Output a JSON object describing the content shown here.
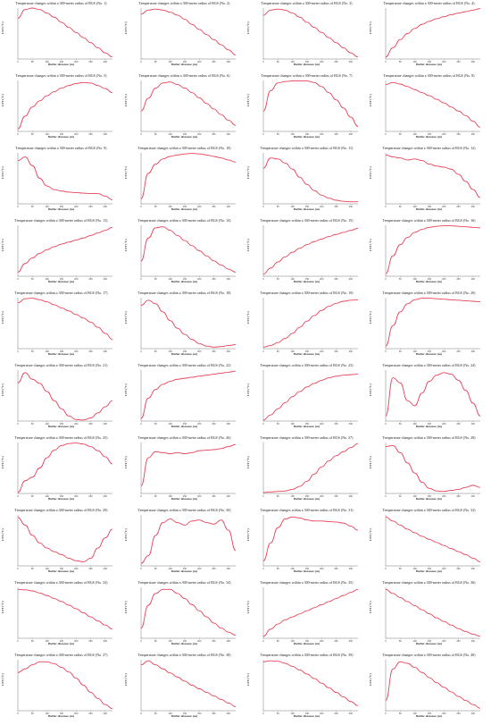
{
  "chart_data": {
    "type": "line",
    "panels": [
      {
        "title": "Temperature changes within a 300-meter radius of BGS (No. 1)",
        "xlabel": "Buffer distance (m)",
        "ylabel": "LST (°C)",
        "y": [
          0.8,
          0.97,
          1.0,
          0.97,
          0.9,
          0.82,
          0.72,
          0.62,
          0.52,
          0.42,
          0.32,
          0.22,
          0.12,
          0.04
        ]
      },
      {
        "title": "Temperature changes within a 300-meter radius of BGS (No. 2)",
        "xlabel": "Buffer distance (m)",
        "ylabel": "LST (°C)",
        "y": [
          0.88,
          0.96,
          0.98,
          0.96,
          0.92,
          0.86,
          0.78,
          0.68,
          0.58,
          0.48,
          0.38,
          0.28,
          0.18,
          0.08
        ]
      },
      {
        "title": "Temperature changes within a 300-meter radius of BGS (No. 3)",
        "xlabel": "Buffer distance (m)",
        "ylabel": "LST (°C)",
        "y": [
          0.86,
          0.96,
          0.98,
          0.96,
          0.9,
          0.82,
          0.72,
          0.62,
          0.52,
          0.42,
          0.32,
          0.22,
          0.12,
          0.04
        ]
      },
      {
        "title": "Temperature changes within a 300-meter radius of BGS (No. 4)",
        "xlabel": "Buffer distance (m)",
        "ylabel": "LST (°C)",
        "y": [
          0.04,
          0.22,
          0.38,
          0.5,
          0.6,
          0.68,
          0.74,
          0.79,
          0.83,
          0.87,
          0.9,
          0.93,
          0.96,
          0.99
        ]
      },
      {
        "title": "Temperature changes within a 300-meter radius of BGS (No. 5)",
        "xlabel": "Buffer distance (m)",
        "ylabel": "LST (°C)",
        "y": [
          0.05,
          0.3,
          0.48,
          0.6,
          0.7,
          0.78,
          0.85,
          0.9,
          0.94,
          0.96,
          0.95,
          0.9,
          0.84,
          0.76
        ]
      },
      {
        "title": "Temperature changes within a 300-meter radius of BGS (No. 6)",
        "xlabel": "Buffer distance (m)",
        "ylabel": "LST (°C)",
        "y": [
          0.4,
          0.65,
          0.85,
          0.95,
          0.97,
          0.92,
          0.85,
          0.76,
          0.66,
          0.55,
          0.44,
          0.33,
          0.22,
          0.12
        ]
      },
      {
        "title": "Temperature changes within a 300-meter radius of BGS (No. 7)",
        "xlabel": "Buffer distance (m)",
        "ylabel": "LST (°C)",
        "y": [
          0.4,
          0.8,
          0.95,
          0.98,
          0.99,
          0.99,
          0.99,
          0.96,
          0.88,
          0.76,
          0.62,
          0.46,
          0.28,
          0.1
        ]
      },
      {
        "title": "Temperature changes within a 300-meter radius of BGS (No. 8)",
        "xlabel": "Buffer distance (m)",
        "ylabel": "LST (°C)",
        "y": [
          0.92,
          0.96,
          0.93,
          0.88,
          0.82,
          0.76,
          0.7,
          0.63,
          0.56,
          0.48,
          0.4,
          0.31,
          0.2,
          0.08
        ]
      },
      {
        "title": "Temperature changes within a 300-meter radius of BGS (No. 9)",
        "xlabel": "Buffer distance (m)",
        "ylabel": "LST (°C)",
        "y": [
          0.85,
          0.92,
          0.75,
          0.5,
          0.35,
          0.28,
          0.25,
          0.23,
          0.22,
          0.21,
          0.2,
          0.2,
          0.15,
          0.08
        ]
      },
      {
        "title": "Temperature changes within a 300-meter radius of BGS (No. 10)",
        "xlabel": "Buffer distance (m)",
        "ylabel": "LST (°C)",
        "y": [
          0.1,
          0.6,
          0.78,
          0.88,
          0.93,
          0.96,
          0.98,
          0.99,
          0.98,
          0.96,
          0.93,
          0.9,
          0.86,
          0.82
        ]
      },
      {
        "title": "Temperature changes within a 300-meter radius of BGS (No. 11)",
        "xlabel": "Buffer distance (m)",
        "ylabel": "LST (°C)",
        "y": [
          0.7,
          0.9,
          0.88,
          0.8,
          0.68,
          0.52,
          0.38,
          0.26,
          0.17,
          0.11,
          0.07,
          0.05,
          0.04,
          0.04
        ]
      },
      {
        "title": "Temperature changes within a 300-meter radius of BGS (No. 12)",
        "xlabel": "Buffer distance (m)",
        "ylabel": "LST (°C)",
        "y": [
          0.96,
          0.92,
          0.9,
          0.86,
          0.88,
          0.85,
          0.78,
          0.74,
          0.72,
          0.68,
          0.58,
          0.44,
          0.28,
          0.12
        ]
      },
      {
        "title": "Temperature changes within a 300-meter radius of BGS (No. 13)",
        "xlabel": "Buffer distance (m)",
        "ylabel": "LST (°C)",
        "y": [
          0.08,
          0.25,
          0.36,
          0.45,
          0.52,
          0.58,
          0.63,
          0.67,
          0.71,
          0.75,
          0.8,
          0.85,
          0.9,
          0.96
        ]
      },
      {
        "title": "Temperature changes within a 300-meter radius of BGS (No. 14)",
        "xlabel": "Buffer distance (m)",
        "ylabel": "LST (°C)",
        "y": [
          0.3,
          0.75,
          0.95,
          0.97,
          0.9,
          0.8,
          0.7,
          0.6,
          0.5,
          0.4,
          0.3,
          0.22,
          0.14,
          0.08
        ]
      },
      {
        "title": "Temperature changes within a 300-meter radius of BGS (No. 15)",
        "xlabel": "Buffer distance (m)",
        "ylabel": "LST (°C)",
        "y": [
          0.04,
          0.16,
          0.28,
          0.38,
          0.47,
          0.55,
          0.62,
          0.68,
          0.73,
          0.78,
          0.82,
          0.86,
          0.9,
          0.94
        ]
      },
      {
        "title": "Temperature changes within a 300-meter radius of BGS (No. 16)",
        "xlabel": "Buffer distance (m)",
        "ylabel": "LST (°C)",
        "y": [
          0.05,
          0.4,
          0.62,
          0.76,
          0.86,
          0.92,
          0.96,
          0.98,
          0.99,
          0.99,
          0.98,
          0.97,
          0.96,
          0.95
        ]
      },
      {
        "title": "Temperature changes within a 300-meter radius of BGS (No. 17)",
        "xlabel": "Buffer distance (m)",
        "ylabel": "LST (°C)",
        "y": [
          0.9,
          0.98,
          0.99,
          0.96,
          0.92,
          0.86,
          0.8,
          0.74,
          0.67,
          0.6,
          0.52,
          0.42,
          0.3,
          0.18
        ]
      },
      {
        "title": "Temperature changes within a 300-meter radius of BGS (No. 18)",
        "xlabel": "Buffer distance (m)",
        "ylabel": "LST (°C)",
        "y": [
          0.85,
          0.95,
          0.88,
          0.72,
          0.55,
          0.4,
          0.28,
          0.18,
          0.1,
          0.05,
          0.03,
          0.04,
          0.06,
          0.08
        ]
      },
      {
        "title": "Temperature changes within a 300-meter radius of BGS (No. 19)",
        "xlabel": "Buffer distance (m)",
        "ylabel": "LST (°C)",
        "y": [
          0.03,
          0.06,
          0.12,
          0.2,
          0.3,
          0.42,
          0.54,
          0.65,
          0.75,
          0.83,
          0.89,
          0.93,
          0.95,
          0.96
        ]
      },
      {
        "title": "Temperature changes within a 300-meter radius of BGS (No. 20)",
        "xlabel": "Buffer distance (m)",
        "ylabel": "LST (°C)",
        "y": [
          0.05,
          0.45,
          0.72,
          0.88,
          0.96,
          0.99,
          0.99,
          0.98,
          0.97,
          0.96,
          0.95,
          0.94,
          0.93,
          0.92
        ]
      },
      {
        "title": "Temperature changes within a 300-meter radius of BGS (No. 21)",
        "xlabel": "Buffer distance (m)",
        "ylabel": "LST (°C)",
        "y": [
          0.75,
          0.95,
          0.82,
          0.74,
          0.58,
          0.4,
          0.24,
          0.1,
          0.03,
          0.02,
          0.06,
          0.16,
          0.28,
          0.4
        ]
      },
      {
        "title": "Temperature changes within a 300-meter radius of BGS (No. 22)",
        "xlabel": "Buffer distance (m)",
        "ylabel": "LST (°C)",
        "y": [
          0.05,
          0.45,
          0.62,
          0.72,
          0.78,
          0.82,
          0.84,
          0.86,
          0.88,
          0.9,
          0.92,
          0.94,
          0.96,
          0.98
        ]
      },
      {
        "title": "Temperature changes within a 300-meter radius of BGS (No. 23)",
        "xlabel": "Buffer distance (m)",
        "ylabel": "LST (°C)",
        "y": [
          0.02,
          0.12,
          0.24,
          0.36,
          0.48,
          0.58,
          0.67,
          0.74,
          0.8,
          0.85,
          0.88,
          0.9,
          0.91,
          0.92
        ]
      },
      {
        "title": "Temperature changes within a 300-meter radius of BGS (No. 24)",
        "xlabel": "Buffer distance (m)",
        "ylabel": "LST (°C)",
        "y": [
          0.1,
          0.85,
          0.75,
          0.4,
          0.3,
          0.55,
          0.78,
          0.9,
          0.95,
          0.92,
          0.8,
          0.6,
          0.35,
          0.1
        ]
      },
      {
        "title": "Temperature changes within a 300-meter radius of BGS (No. 25)",
        "xlabel": "Buffer distance (m)",
        "ylabel": "LST (°C)",
        "y": [
          0.02,
          0.25,
          0.32,
          0.5,
          0.7,
          0.85,
          0.94,
          0.98,
          0.99,
          0.97,
          0.92,
          0.84,
          0.72,
          0.58
        ]
      },
      {
        "title": "Temperature changes within a 300-meter radius of BGS (No. 26)",
        "xlabel": "Buffer distance (m)",
        "ylabel": "LST (°C)",
        "y": [
          0.15,
          0.7,
          0.82,
          0.8,
          0.78,
          0.8,
          0.78,
          0.8,
          0.84,
          0.85,
          0.86,
          0.88,
          0.92,
          0.96
        ]
      },
      {
        "title": "Temperature changes within a 300-meter radius of BGS (No. 27)",
        "xlabel": "Buffer distance (m)",
        "ylabel": "LST (°C)",
        "y": [
          0.02,
          0.03,
          0.04,
          0.05,
          0.08,
          0.14,
          0.24,
          0.38,
          0.52,
          0.64,
          0.74,
          0.82,
          0.9,
          0.98
        ]
      },
      {
        "title": "Temperature changes within a 300-meter radius of BGS (No. 28)",
        "xlabel": "Buffer distance (m)",
        "ylabel": "LST (°C)",
        "y": [
          0.92,
          0.94,
          0.8,
          0.6,
          0.4,
          0.22,
          0.1,
          0.05,
          0.04,
          0.06,
          0.08,
          0.12,
          0.16,
          0.12
        ]
      },
      {
        "title": "Temperature changes within a 300-meter radius of BGS (No. 29)",
        "xlabel": "Buffer distance (m)",
        "ylabel": "LST (°C)",
        "y": [
          0.95,
          0.8,
          0.6,
          0.45,
          0.35,
          0.28,
          0.22,
          0.15,
          0.1,
          0.08,
          0.15,
          0.35,
          0.55,
          0.72
        ]
      },
      {
        "title": "Temperature changes within a 300-meter radius of BGS (No. 30)",
        "xlabel": "Buffer distance (m)",
        "ylabel": "LST (°C)",
        "y": [
          0.05,
          0.2,
          0.6,
          0.85,
          0.92,
          0.85,
          0.8,
          0.88,
          0.9,
          0.85,
          0.82,
          0.9,
          0.7,
          0.3
        ]
      },
      {
        "title": "Temperature changes within a 300-meter radius of BGS (No. 31)",
        "xlabel": "Buffer distance (m)",
        "ylabel": "LST (°C)",
        "y": [
          0.1,
          0.45,
          0.75,
          0.92,
          0.96,
          0.94,
          0.9,
          0.88,
          0.88,
          0.87,
          0.86,
          0.84,
          0.78,
          0.7
        ]
      },
      {
        "title": "Temperature changes within a 300-meter radius of BGS (No. 32)",
        "xlabel": "Buffer distance (m)",
        "ylabel": "LST (°C)",
        "y": [
          0.96,
          0.88,
          0.8,
          0.72,
          0.65,
          0.58,
          0.52,
          0.46,
          0.4,
          0.34,
          0.28,
          0.22,
          0.15,
          0.08
        ]
      },
      {
        "title": "Temperature changes within a 300-meter radius of BGS (No. 33)",
        "xlabel": "Buffer distance (m)",
        "ylabel": "LST (°C)",
        "y": [
          0.96,
          0.95,
          0.93,
          0.89,
          0.84,
          0.78,
          0.72,
          0.65,
          0.58,
          0.5,
          0.42,
          0.34,
          0.26,
          0.18
        ]
      },
      {
        "title": "Temperature changes within a 300-meter radius of BGS (No. 34)",
        "xlabel": "Buffer distance (m)",
        "ylabel": "LST (°C)",
        "y": [
          0.2,
          0.65,
          0.88,
          0.96,
          0.96,
          0.88,
          0.78,
          0.66,
          0.54,
          0.42,
          0.3,
          0.2,
          0.12,
          0.06
        ]
      },
      {
        "title": "Temperature changes within a 300-meter radius of BGS (No. 35)",
        "xlabel": "Buffer distance (m)",
        "ylabel": "LST (°C)",
        "y": [
          0.04,
          0.18,
          0.28,
          0.36,
          0.42,
          0.48,
          0.54,
          0.6,
          0.66,
          0.72,
          0.78,
          0.84,
          0.9,
          0.96
        ]
      },
      {
        "title": "Temperature changes within a 300-meter radius of BGS (No. 36)",
        "xlabel": "Buffer distance (m)",
        "ylabel": "LST (°C)",
        "y": [
          0.96,
          0.88,
          0.8,
          0.72,
          0.64,
          0.56,
          0.48,
          0.4,
          0.33,
          0.26,
          0.19,
          0.13,
          0.08,
          0.04
        ]
      },
      {
        "title": "Temperature changes within a 300-meter radius of BGS (No. 37)",
        "xlabel": "Buffer distance (m)",
        "ylabel": "LST (°C)",
        "y": [
          0.75,
          0.82,
          0.9,
          0.96,
          0.96,
          0.92,
          0.85,
          0.76,
          0.64,
          0.5,
          0.36,
          0.24,
          0.12,
          0.04
        ]
      },
      {
        "title": "Temperature changes within a 300-meter radius of BGS (No. 38)",
        "xlabel": "Buffer distance (m)",
        "ylabel": "LST (°C)",
        "y": [
          0.9,
          0.98,
          0.9,
          0.82,
          0.74,
          0.66,
          0.58,
          0.5,
          0.43,
          0.36,
          0.29,
          0.22,
          0.15,
          0.08
        ]
      },
      {
        "title": "Temperature changes within a 300-meter radius of BGS (No. 39)",
        "xlabel": "Buffer distance (m)",
        "ylabel": "LST (°C)",
        "y": [
          0.96,
          0.98,
          0.97,
          0.93,
          0.87,
          0.8,
          0.72,
          0.63,
          0.54,
          0.45,
          0.36,
          0.27,
          0.18,
          0.1
        ]
      },
      {
        "title": "Temperature changes within a 300-meter radius of BGS (No. 40)",
        "xlabel": "Buffer distance (m)",
        "ylabel": "LST (°C)",
        "y": [
          0.2,
          0.82,
          0.96,
          0.93,
          0.85,
          0.75,
          0.65,
          0.55,
          0.46,
          0.37,
          0.28,
          0.2,
          0.12,
          0.05
        ]
      }
    ],
    "x": [
      0,
      25,
      50,
      75,
      100,
      125,
      150,
      175,
      200,
      225,
      250,
      275,
      300,
      325
    ],
    "xticks": [
      0,
      50,
      100,
      150,
      200,
      250,
      300
    ],
    "line_color": "#e8435a",
    "grid": false
  }
}
